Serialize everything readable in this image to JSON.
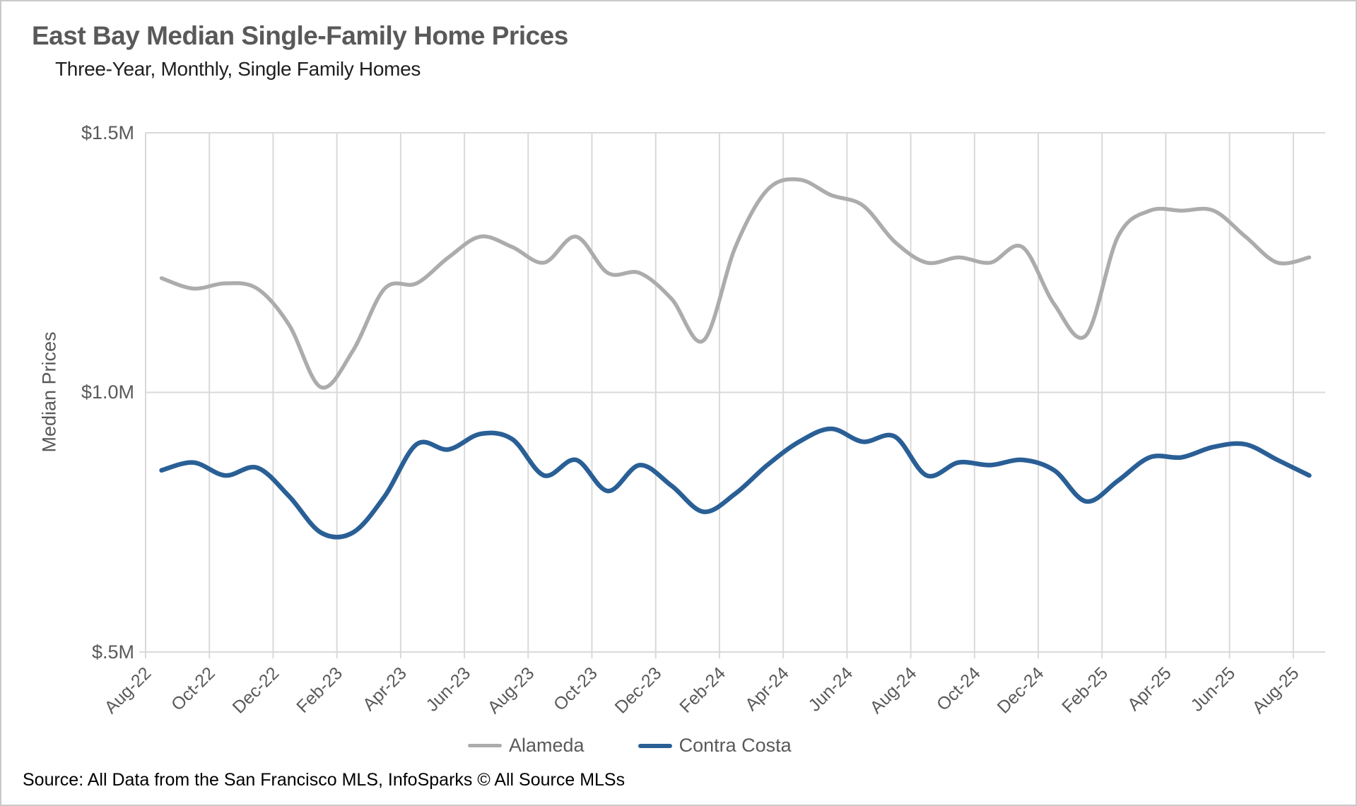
{
  "title": "East Bay Median Single-Family Home Prices",
  "subtitle": "Three-Year, Monthly, Single Family Homes",
  "source": "Source: All Data from the San Francisco MLS, InfoSparks © All Source MLSs",
  "colors": {
    "alameda_line": "#acacac",
    "contra_costa_line": "#2a5f96",
    "gridline": "#d9d9d9",
    "axis_text": "#595959",
    "title_text": "#595959"
  },
  "y_axis": {
    "title": "Median Prices",
    "tick_labels": [
      "$1.5M",
      "$1.0M",
      "$.5M"
    ],
    "min": 0.5,
    "max": 1.5
  },
  "x_axis": {
    "tick_labels": [
      "Aug-22",
      "Oct-22",
      "Dec-22",
      "Feb-23",
      "Apr-23",
      "Jun-23",
      "Aug-23",
      "Oct-23",
      "Dec-23",
      "Feb-24",
      "Apr-24",
      "Jun-24",
      "Aug-24",
      "Oct-24",
      "Dec-24",
      "Feb-25",
      "Apr-25",
      "Jun-25",
      "Aug-25"
    ]
  },
  "legend": [
    {
      "label": "Alameda",
      "color": "#acacac"
    },
    {
      "label": "Contra Costa",
      "color": "#2a5f96"
    }
  ],
  "chart_data": {
    "type": "line",
    "title": "East Bay Median Single-Family Home Prices",
    "subtitle": "Three-Year, Monthly, Single Family Homes",
    "ylabel": "Median Prices",
    "units": "millions USD",
    "ylim": [
      0.5,
      1.5
    ],
    "grid": "vertical every 2 months, horizontal at $0.5M/$1.0M/$1.5M",
    "legend_position": "bottom",
    "line_style": "smoothed",
    "x": [
      "Aug-22",
      "Sep-22",
      "Oct-22",
      "Nov-22",
      "Dec-22",
      "Jan-23",
      "Feb-23",
      "Mar-23",
      "Apr-23",
      "May-23",
      "Jun-23",
      "Jul-23",
      "Aug-23",
      "Sep-23",
      "Oct-23",
      "Nov-23",
      "Dec-23",
      "Jan-24",
      "Feb-24",
      "Mar-24",
      "Apr-24",
      "May-24",
      "Jun-24",
      "Jul-24",
      "Aug-24",
      "Sep-24",
      "Oct-24",
      "Nov-24",
      "Dec-24",
      "Jan-25",
      "Feb-25",
      "Mar-25",
      "Apr-25",
      "May-25",
      "Jun-25",
      "Jul-25",
      "Aug-25"
    ],
    "series": [
      {
        "name": "Alameda",
        "color": "#acacac",
        "values": [
          1.22,
          1.2,
          1.21,
          1.2,
          1.13,
          1.01,
          1.08,
          1.2,
          1.21,
          1.26,
          1.3,
          1.28,
          1.25,
          1.3,
          1.23,
          1.23,
          1.18,
          1.1,
          1.28,
          1.39,
          1.41,
          1.38,
          1.36,
          1.29,
          1.25,
          1.26,
          1.25,
          1.28,
          1.17,
          1.11,
          1.3,
          1.35,
          1.35,
          1.35,
          1.3,
          1.25,
          1.26
        ]
      },
      {
        "name": "Contra Costa",
        "color": "#2a5f96",
        "values": [
          0.85,
          0.865,
          0.84,
          0.855,
          0.8,
          0.73,
          0.73,
          0.8,
          0.9,
          0.89,
          0.92,
          0.91,
          0.84,
          0.87,
          0.81,
          0.86,
          0.82,
          0.77,
          0.805,
          0.86,
          0.905,
          0.93,
          0.905,
          0.915,
          0.84,
          0.865,
          0.86,
          0.87,
          0.85,
          0.79,
          0.83,
          0.875,
          0.875,
          0.895,
          0.9,
          0.87,
          0.84
        ]
      }
    ]
  }
}
